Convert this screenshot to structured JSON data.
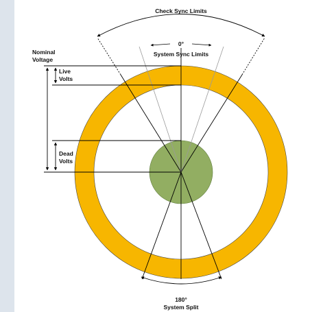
{
  "diagram": {
    "labels": {
      "check_sync_limits": "Check Sync Limits",
      "zero_degrees": "0°",
      "system_sync_limits": "System Sync Limits",
      "nominal": "Nominal",
      "voltage": "Voltage",
      "live": "Live",
      "live_volts": "Volts",
      "dead": "Dead",
      "dead_volts": "Volts",
      "one_eighty": "180°",
      "system_split": "System Split"
    },
    "colors": {
      "ring": "#f7b600",
      "center_disc": "#92ae62",
      "background": "#dde4ec",
      "canvas": "#ffffff",
      "line": "#000000"
    }
  }
}
